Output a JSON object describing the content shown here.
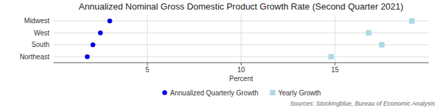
{
  "chart_data": {
    "type": "scatter",
    "orientation": "horizontal",
    "title": "Annualized Nominal Gross Domestic Product Growth Rate (Second Quarter 2021)",
    "xlabel": "Percent",
    "source": "Sources: Stockingblue, Bureau of Economic Analysis",
    "categories": [
      "Midwest",
      "West",
      "South",
      "Northeast"
    ],
    "series": [
      {
        "name": "Annualized Quarterly Growth",
        "color": "#0000DD",
        "marker": "circle",
        "values": [
          3.0,
          2.5,
          2.1,
          1.8
        ]
      },
      {
        "name": "Yearly Growth",
        "color": "#ADD8E6",
        "marker": "square",
        "values": [
          19.1,
          16.8,
          17.5,
          14.8
        ]
      }
    ],
    "xlim": [
      0,
      20
    ],
    "xticks": [
      5,
      10,
      15
    ],
    "grid": true,
    "legend": "bottom"
  }
}
